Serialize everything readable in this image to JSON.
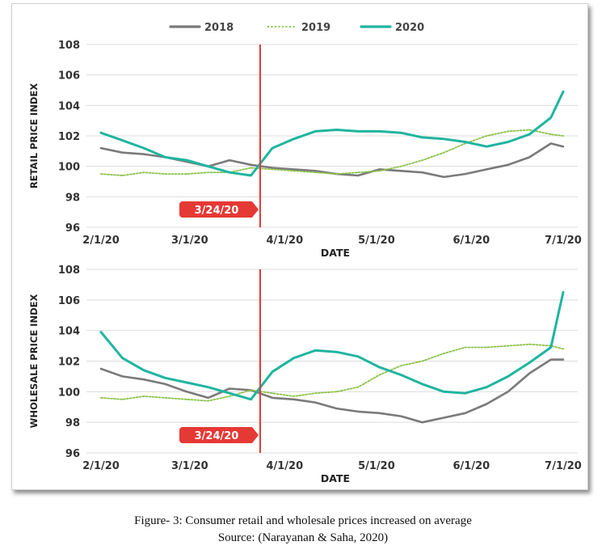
{
  "caption": {
    "line1": "Figure- 3: Consumer retail and wholesale prices increased on average",
    "line2": "Source: (Narayanan & Saha, 2020)"
  },
  "legend": {
    "items": [
      {
        "name": "2018",
        "color": "#7a7a7a",
        "style": "solid"
      },
      {
        "name": "2019",
        "color": "#8bc34a",
        "style": "dotted"
      },
      {
        "name": "2020",
        "color": "#1fb5a0",
        "style": "solid"
      }
    ]
  },
  "marker": {
    "label": "3/24/20",
    "color": "#e53935"
  },
  "chart_data": [
    {
      "type": "line",
      "title": "",
      "xlabel": "DATE",
      "ylabel": "RETAIL PRICE INDEX",
      "ylim": [
        96,
        108
      ],
      "yticks": [
        96,
        98,
        100,
        102,
        104,
        106,
        108
      ],
      "xticks": [
        "2/1/20",
        "3/1/20",
        "4/1/20",
        "5/1/20",
        "6/1/20",
        "7/1/20"
      ],
      "marker_date": "3/24/20",
      "series": [
        {
          "name": "2018",
          "x": [
            "2/1/20",
            "2/8/20",
            "2/15/20",
            "2/22/20",
            "2/29/20",
            "3/7/20",
            "3/14/20",
            "3/21/20",
            "3/28/20",
            "4/4/20",
            "4/11/20",
            "4/18/20",
            "4/25/20",
            "5/2/20",
            "5/9/20",
            "5/16/20",
            "5/23/20",
            "5/30/20",
            "6/6/20",
            "6/13/20",
            "6/20/20",
            "6/27/20",
            "7/1/20"
          ],
          "y": [
            101.2,
            100.9,
            100.8,
            100.6,
            100.3,
            100.0,
            100.4,
            100.1,
            99.9,
            99.8,
            99.7,
            99.5,
            99.4,
            99.8,
            99.7,
            99.6,
            99.3,
            99.5,
            99.8,
            100.1,
            100.6,
            101.5,
            101.3
          ]
        },
        {
          "name": "2019",
          "x": [
            "2/1/20",
            "2/8/20",
            "2/15/20",
            "2/22/20",
            "2/29/20",
            "3/7/20",
            "3/14/20",
            "3/21/20",
            "3/28/20",
            "4/4/20",
            "4/11/20",
            "4/18/20",
            "4/25/20",
            "5/2/20",
            "5/9/20",
            "5/16/20",
            "5/23/20",
            "5/30/20",
            "6/6/20",
            "6/13/20",
            "6/20/20",
            "6/27/20",
            "7/1/20"
          ],
          "y": [
            99.5,
            99.4,
            99.6,
            99.5,
            99.5,
            99.6,
            99.6,
            99.9,
            99.8,
            99.7,
            99.6,
            99.5,
            99.6,
            99.7,
            100.0,
            100.4,
            100.9,
            101.5,
            102.0,
            102.3,
            102.4,
            102.1,
            102.0
          ]
        },
        {
          "name": "2020",
          "x": [
            "2/1/20",
            "2/8/20",
            "2/15/20",
            "2/22/20",
            "2/29/20",
            "3/7/20",
            "3/14/20",
            "3/21/20",
            "3/28/20",
            "4/4/20",
            "4/11/20",
            "4/18/20",
            "4/25/20",
            "5/2/20",
            "5/9/20",
            "5/16/20",
            "5/23/20",
            "5/30/20",
            "6/6/20",
            "6/13/20",
            "6/20/20",
            "6/27/20",
            "7/1/20"
          ],
          "y": [
            102.2,
            101.7,
            101.2,
            100.6,
            100.4,
            100.0,
            99.6,
            99.4,
            101.2,
            101.8,
            102.3,
            102.4,
            102.3,
            102.3,
            102.2,
            101.9,
            101.8,
            101.6,
            101.3,
            101.6,
            102.1,
            103.2,
            104.9
          ]
        }
      ]
    },
    {
      "type": "line",
      "title": "",
      "xlabel": "DATE",
      "ylabel": "WHOLESALE PRICE INDEX",
      "ylim": [
        96,
        108
      ],
      "yticks": [
        96,
        98,
        100,
        102,
        104,
        106,
        108
      ],
      "xticks": [
        "2/1/20",
        "3/1/20",
        "4/1/20",
        "5/1/20",
        "6/1/20",
        "7/1/20"
      ],
      "marker_date": "3/24/20",
      "series": [
        {
          "name": "2018",
          "x": [
            "2/1/20",
            "2/8/20",
            "2/15/20",
            "2/22/20",
            "2/29/20",
            "3/7/20",
            "3/14/20",
            "3/21/20",
            "3/28/20",
            "4/4/20",
            "4/11/20",
            "4/18/20",
            "4/25/20",
            "5/2/20",
            "5/9/20",
            "5/16/20",
            "5/23/20",
            "5/30/20",
            "6/6/20",
            "6/13/20",
            "6/20/20",
            "6/27/20",
            "7/1/20"
          ],
          "y": [
            101.5,
            101.0,
            100.8,
            100.5,
            100.0,
            99.6,
            100.2,
            100.1,
            99.6,
            99.5,
            99.3,
            98.9,
            98.7,
            98.6,
            98.4,
            98.0,
            98.3,
            98.6,
            99.2,
            100.0,
            101.2,
            102.1,
            102.1
          ]
        },
        {
          "name": "2019",
          "x": [
            "2/1/20",
            "2/8/20",
            "2/15/20",
            "2/22/20",
            "2/29/20",
            "3/7/20",
            "3/14/20",
            "3/21/20",
            "3/28/20",
            "4/4/20",
            "4/11/20",
            "4/18/20",
            "4/25/20",
            "5/2/20",
            "5/9/20",
            "5/16/20",
            "5/23/20",
            "5/30/20",
            "6/6/20",
            "6/13/20",
            "6/20/20",
            "6/27/20",
            "7/1/20"
          ],
          "y": [
            99.6,
            99.5,
            99.7,
            99.6,
            99.5,
            99.4,
            99.7,
            100.1,
            99.9,
            99.7,
            99.9,
            100.0,
            100.3,
            101.1,
            101.7,
            102.0,
            102.5,
            102.9,
            102.9,
            103.0,
            103.1,
            103.0,
            102.8
          ]
        },
        {
          "name": "2020",
          "x": [
            "2/1/20",
            "2/8/20",
            "2/15/20",
            "2/22/20",
            "2/29/20",
            "3/7/20",
            "3/14/20",
            "3/21/20",
            "3/28/20",
            "4/4/20",
            "4/11/20",
            "4/18/20",
            "4/25/20",
            "5/2/20",
            "5/9/20",
            "5/16/20",
            "5/23/20",
            "5/30/20",
            "6/6/20",
            "6/13/20",
            "6/20/20",
            "6/27/20",
            "7/1/20"
          ],
          "y": [
            103.9,
            102.2,
            101.4,
            100.9,
            100.6,
            100.3,
            99.9,
            99.5,
            101.3,
            102.2,
            102.7,
            102.6,
            102.3,
            101.6,
            101.1,
            100.5,
            100.0,
            99.9,
            100.3,
            101.0,
            101.9,
            102.9,
            106.5
          ]
        }
      ]
    }
  ]
}
